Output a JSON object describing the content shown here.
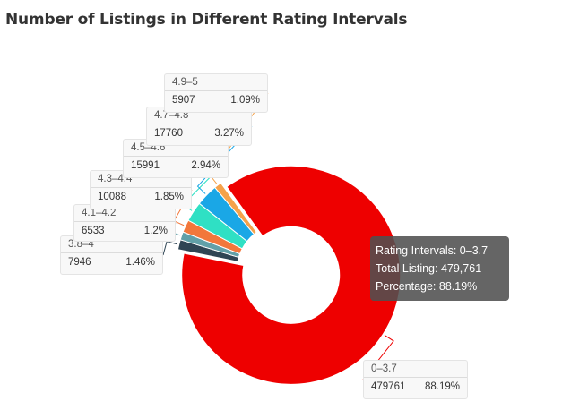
{
  "title": "Number of Listings in Different Rating Intervals",
  "tooltip": {
    "interval_label": "Rating Intervals: 0–3.7",
    "total_label": "Total Listing: 479,761",
    "percentage_label": "Percentage: 88.19%"
  },
  "colors": {
    "background": "#ffffff",
    "tooltip_bg": "#505050"
  },
  "chart_data": {
    "type": "pie",
    "variant": "donut",
    "title": "Number of Listings in Different Rating Intervals",
    "slices": [
      {
        "label": "0–3.7",
        "value": 479761,
        "percent": "88.19%",
        "color": "#ee0000",
        "highlighted": true
      },
      {
        "label": "3.8–4",
        "value": 7946,
        "percent": "1.46%",
        "color": "#2f4554"
      },
      {
        "label": "4.1–4.2",
        "value": 6533,
        "percent": "1.2%",
        "color": "#61a0a8"
      },
      {
        "label": "4.3–4.4",
        "value": 10088,
        "percent": "1.85%",
        "color": "#f2773b"
      },
      {
        "label": "4.5–4.6",
        "value": 15991,
        "percent": "2.94%",
        "color": "#2fe0c4"
      },
      {
        "label": "4.7–4.8",
        "value": 17760,
        "percent": "3.27%",
        "color": "#1aa7e6"
      },
      {
        "label": "4.9–5",
        "value": 5907,
        "percent": "1.09%",
        "color": "#f5a24a"
      }
    ]
  }
}
